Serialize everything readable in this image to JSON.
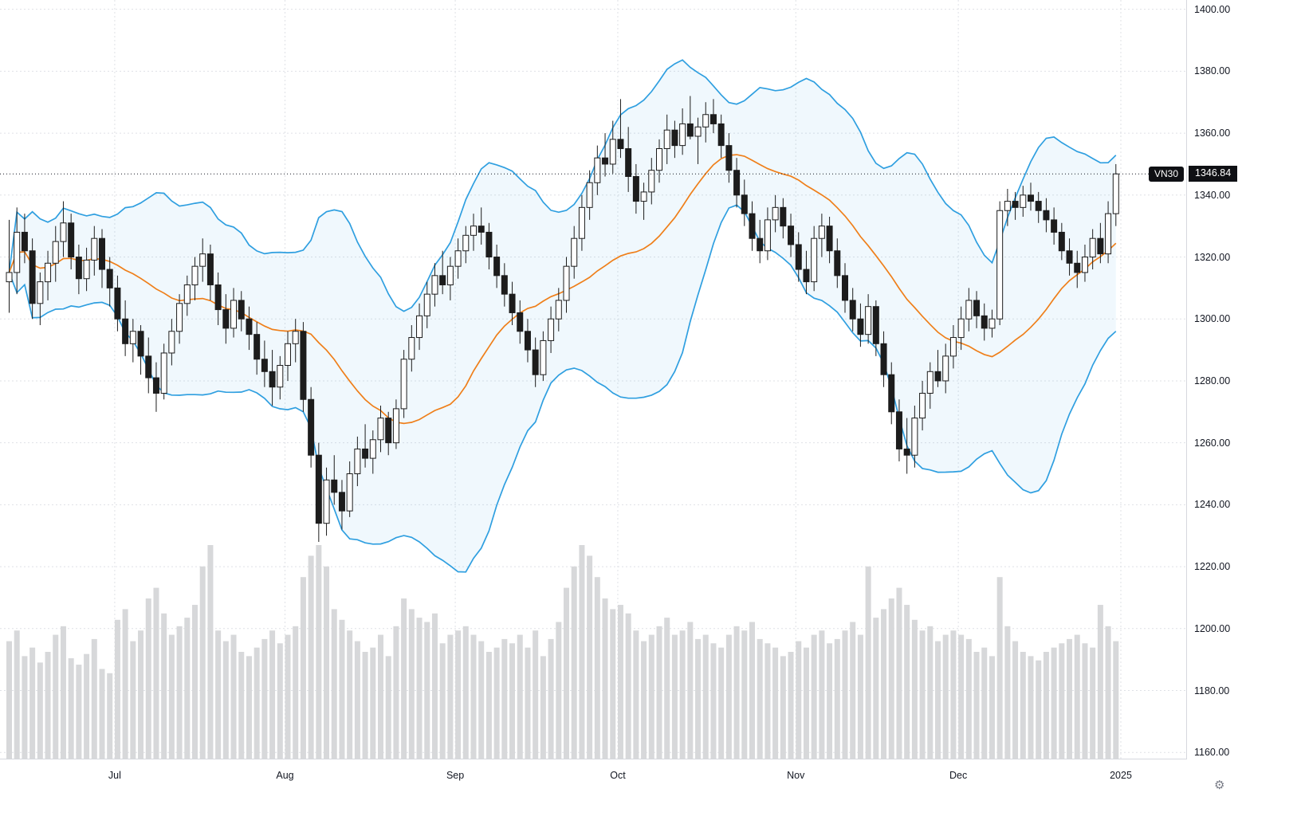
{
  "ticker": {
    "symbol": "VN30",
    "price_label": "1346.84",
    "last_price": 1346.84
  },
  "colors": {
    "background": "#ffffff",
    "band_line": "#2f9fe0",
    "band_fill": "#2f9fe0",
    "basis_line": "#ef7f1a",
    "candle_up_fill": "#ffffff",
    "candle_down_fill": "#1c1c1c",
    "candle_border": "#1c1c1c",
    "volume_bar": "#d7d8da",
    "grid": "#dfe1e6",
    "axis_text": "#131722",
    "badge_bg": "#0f1014",
    "price_line": "#131722"
  },
  "price_axis": {
    "min": 1158,
    "max": 1403,
    "ticks": [
      1160,
      1180,
      1200,
      1220,
      1240,
      1260,
      1280,
      1300,
      1320,
      1340,
      1360,
      1380,
      1400
    ]
  },
  "time_axis": {
    "labels": [
      {
        "text": "Jul",
        "index": 14
      },
      {
        "text": "Aug",
        "index": 36
      },
      {
        "text": "Sep",
        "index": 58
      },
      {
        "text": "Oct",
        "index": 79
      },
      {
        "text": "Nov",
        "index": 102
      },
      {
        "text": "Dec",
        "index": 123
      },
      {
        "text": "2025",
        "index": 144
      }
    ],
    "settings_icon": "gear-icon"
  },
  "chart_data": {
    "type": "candlestick",
    "title": "VN30 daily chart with Bollinger Bands (20, 2) and volume",
    "symbol": "VN30",
    "last_price": 1346.84,
    "ylim": [
      1158,
      1403
    ],
    "grid": true,
    "indicator": {
      "name": "Bollinger Bands",
      "length": 20,
      "mult": 2
    },
    "columns": [
      "open",
      "high",
      "low",
      "close",
      "volume"
    ],
    "candles": [
      [
        1312,
        1332,
        1302,
        1315,
        55
      ],
      [
        1315,
        1336,
        1308,
        1328,
        60
      ],
      [
        1328,
        1334,
        1318,
        1322,
        48
      ],
      [
        1322,
        1326,
        1300,
        1305,
        52
      ],
      [
        1305,
        1315,
        1298,
        1312,
        45
      ],
      [
        1312,
        1322,
        1306,
        1318,
        50
      ],
      [
        1318,
        1330,
        1312,
        1325,
        58
      ],
      [
        1325,
        1338,
        1320,
        1331,
        62
      ],
      [
        1331,
        1334,
        1316,
        1320,
        47
      ],
      [
        1320,
        1324,
        1308,
        1313,
        44
      ],
      [
        1313,
        1323,
        1309,
        1319,
        49
      ],
      [
        1319,
        1330,
        1314,
        1326,
        56
      ],
      [
        1326,
        1329,
        1310,
        1316,
        42
      ],
      [
        1316,
        1320,
        1304,
        1310,
        40
      ],
      [
        1310,
        1314,
        1296,
        1300,
        65
      ],
      [
        1300,
        1306,
        1288,
        1292,
        70
      ],
      [
        1292,
        1300,
        1286,
        1296,
        55
      ],
      [
        1296,
        1298,
        1282,
        1288,
        60
      ],
      [
        1288,
        1294,
        1276,
        1281,
        75
      ],
      [
        1281,
        1286,
        1270,
        1276,
        80
      ],
      [
        1276,
        1292,
        1274,
        1289,
        68
      ],
      [
        1289,
        1300,
        1285,
        1296,
        58
      ],
      [
        1296,
        1308,
        1292,
        1305,
        62
      ],
      [
        1305,
        1314,
        1301,
        1311,
        66
      ],
      [
        1311,
        1320,
        1306,
        1317,
        72
      ],
      [
        1317,
        1326,
        1312,
        1321,
        90
      ],
      [
        1321,
        1324,
        1306,
        1311,
        100
      ],
      [
        1311,
        1315,
        1298,
        1303,
        60
      ],
      [
        1303,
        1308,
        1292,
        1297,
        55
      ],
      [
        1297,
        1310,
        1294,
        1306,
        58
      ],
      [
        1306,
        1309,
        1296,
        1300,
        50
      ],
      [
        1300,
        1304,
        1290,
        1295,
        48
      ],
      [
        1295,
        1299,
        1282,
        1287,
        52
      ],
      [
        1287,
        1293,
        1278,
        1283,
        56
      ],
      [
        1283,
        1290,
        1272,
        1278,
        60
      ],
      [
        1278,
        1288,
        1274,
        1285,
        54
      ],
      [
        1285,
        1296,
        1280,
        1292,
        58
      ],
      [
        1292,
        1300,
        1286,
        1296,
        62
      ],
      [
        1296,
        1299,
        1270,
        1274,
        85
      ],
      [
        1274,
        1278,
        1252,
        1256,
        95
      ],
      [
        1256,
        1260,
        1228,
        1234,
        100
      ],
      [
        1234,
        1252,
        1230,
        1248,
        90
      ],
      [
        1248,
        1256,
        1240,
        1244,
        70
      ],
      [
        1244,
        1248,
        1232,
        1238,
        65
      ],
      [
        1238,
        1254,
        1236,
        1250,
        60
      ],
      [
        1250,
        1262,
        1246,
        1258,
        55
      ],
      [
        1258,
        1266,
        1252,
        1255,
        50
      ],
      [
        1255,
        1264,
        1250,
        1261,
        52
      ],
      [
        1261,
        1272,
        1257,
        1268,
        58
      ],
      [
        1268,
        1270,
        1256,
        1260,
        48
      ],
      [
        1260,
        1274,
        1258,
        1271,
        62
      ],
      [
        1271,
        1290,
        1268,
        1287,
        75
      ],
      [
        1287,
        1298,
        1283,
        1294,
        70
      ],
      [
        1294,
        1305,
        1290,
        1301,
        66
      ],
      [
        1301,
        1312,
        1297,
        1308,
        64
      ],
      [
        1308,
        1318,
        1304,
        1314,
        68
      ],
      [
        1314,
        1322,
        1308,
        1311,
        54
      ],
      [
        1311,
        1320,
        1306,
        1317,
        58
      ],
      [
        1317,
        1326,
        1313,
        1322,
        60
      ],
      [
        1322,
        1330,
        1318,
        1327,
        62
      ],
      [
        1327,
        1334,
        1322,
        1330,
        58
      ],
      [
        1330,
        1336,
        1324,
        1328,
        55
      ],
      [
        1328,
        1331,
        1316,
        1320,
        50
      ],
      [
        1320,
        1324,
        1310,
        1314,
        52
      ],
      [
        1314,
        1318,
        1304,
        1308,
        56
      ],
      [
        1308,
        1312,
        1298,
        1302,
        54
      ],
      [
        1302,
        1306,
        1292,
        1296,
        58
      ],
      [
        1296,
        1300,
        1286,
        1290,
        52
      ],
      [
        1290,
        1294,
        1278,
        1282,
        60
      ],
      [
        1282,
        1296,
        1280,
        1293,
        48
      ],
      [
        1293,
        1304,
        1289,
        1300,
        56
      ],
      [
        1300,
        1310,
        1296,
        1306,
        64
      ],
      [
        1306,
        1320,
        1302,
        1317,
        80
      ],
      [
        1317,
        1330,
        1313,
        1326,
        90
      ],
      [
        1326,
        1340,
        1322,
        1336,
        100
      ],
      [
        1336,
        1348,
        1332,
        1344,
        95
      ],
      [
        1344,
        1356,
        1340,
        1352,
        85
      ],
      [
        1352,
        1360,
        1346,
        1350,
        75
      ],
      [
        1350,
        1364,
        1347,
        1358,
        70
      ],
      [
        1358,
        1371,
        1352,
        1355,
        72
      ],
      [
        1355,
        1362,
        1341,
        1346,
        68
      ],
      [
        1346,
        1350,
        1334,
        1338,
        60
      ],
      [
        1338,
        1344,
        1332,
        1341,
        55
      ],
      [
        1341,
        1352,
        1337,
        1348,
        58
      ],
      [
        1348,
        1358,
        1344,
        1355,
        62
      ],
      [
        1355,
        1366,
        1350,
        1361,
        66
      ],
      [
        1361,
        1364,
        1352,
        1356,
        58
      ],
      [
        1356,
        1368,
        1353,
        1363,
        60
      ],
      [
        1363,
        1372,
        1358,
        1359,
        64
      ],
      [
        1359,
        1365,
        1350,
        1362,
        56
      ],
      [
        1362,
        1370,
        1357,
        1366,
        58
      ],
      [
        1366,
        1371,
        1360,
        1363,
        54
      ],
      [
        1363,
        1366,
        1352,
        1356,
        52
      ],
      [
        1356,
        1360,
        1344,
        1348,
        58
      ],
      [
        1348,
        1352,
        1336,
        1340,
        62
      ],
      [
        1340,
        1345,
        1330,
        1334,
        60
      ],
      [
        1334,
        1338,
        1322,
        1326,
        64
      ],
      [
        1326,
        1332,
        1318,
        1322,
        56
      ],
      [
        1322,
        1336,
        1319,
        1332,
        54
      ],
      [
        1332,
        1340,
        1328,
        1336,
        52
      ],
      [
        1336,
        1339,
        1326,
        1330,
        48
      ],
      [
        1330,
        1334,
        1320,
        1324,
        50
      ],
      [
        1324,
        1328,
        1312,
        1316,
        55
      ],
      [
        1316,
        1322,
        1308,
        1312,
        52
      ],
      [
        1312,
        1330,
        1309,
        1326,
        58
      ],
      [
        1326,
        1334,
        1320,
        1330,
        60
      ],
      [
        1330,
        1333,
        1318,
        1322,
        54
      ],
      [
        1322,
        1326,
        1310,
        1314,
        56
      ],
      [
        1314,
        1318,
        1302,
        1306,
        60
      ],
      [
        1306,
        1310,
        1296,
        1300,
        64
      ],
      [
        1300,
        1305,
        1291,
        1295,
        58
      ],
      [
        1295,
        1308,
        1292,
        1304,
        90
      ],
      [
        1304,
        1306,
        1288,
        1292,
        66
      ],
      [
        1292,
        1296,
        1278,
        1282,
        70
      ],
      [
        1282,
        1286,
        1266,
        1270,
        75
      ],
      [
        1270,
        1274,
        1254,
        1258,
        80
      ],
      [
        1258,
        1268,
        1250,
        1256,
        72
      ],
      [
        1256,
        1272,
        1252,
        1268,
        65
      ],
      [
        1268,
        1280,
        1264,
        1276,
        60
      ],
      [
        1276,
        1286,
        1271,
        1283,
        62
      ],
      [
        1283,
        1290,
        1278,
        1280,
        55
      ],
      [
        1280,
        1292,
        1276,
        1288,
        58
      ],
      [
        1288,
        1298,
        1284,
        1294,
        60
      ],
      [
        1294,
        1304,
        1290,
        1300,
        58
      ],
      [
        1300,
        1310,
        1296,
        1306,
        56
      ],
      [
        1306,
        1309,
        1297,
        1301,
        50
      ],
      [
        1301,
        1305,
        1293,
        1297,
        52
      ],
      [
        1297,
        1303,
        1294,
        1300,
        48
      ],
      [
        1300,
        1338,
        1298,
        1335,
        85
      ],
      [
        1335,
        1342,
        1330,
        1338,
        62
      ],
      [
        1338,
        1341,
        1332,
        1336,
        55
      ],
      [
        1336,
        1343,
        1333,
        1340,
        50
      ],
      [
        1340,
        1344,
        1335,
        1338,
        48
      ],
      [
        1338,
        1341,
        1331,
        1335,
        46
      ],
      [
        1335,
        1339,
        1328,
        1332,
        50
      ],
      [
        1332,
        1336,
        1324,
        1328,
        52
      ],
      [
        1328,
        1331,
        1319,
        1322,
        54
      ],
      [
        1322,
        1326,
        1314,
        1318,
        56
      ],
      [
        1318,
        1322,
        1310,
        1315,
        58
      ],
      [
        1315,
        1324,
        1312,
        1320,
        54
      ],
      [
        1320,
        1329,
        1316,
        1326,
        52
      ],
      [
        1326,
        1331,
        1318,
        1321,
        72
      ],
      [
        1321,
        1338,
        1318,
        1334,
        62
      ],
      [
        1334,
        1350,
        1330,
        1346.84,
        55
      ]
    ]
  }
}
